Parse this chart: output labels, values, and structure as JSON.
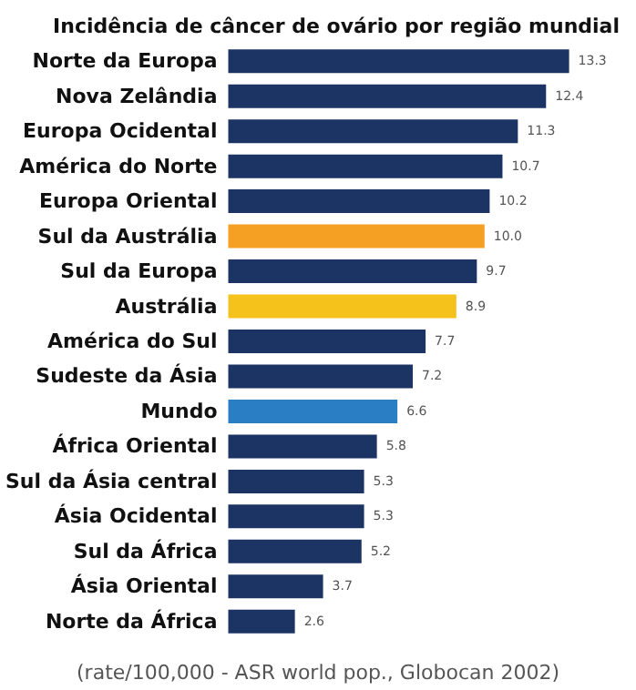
{
  "chart_data": {
    "type": "bar",
    "orientation": "horizontal",
    "title": "Incidência de câncer de ovário por região mundial",
    "categories": [
      "Norte da Europa",
      "Nova Zelândia",
      "Europa Ocidental",
      "América do Norte",
      "Europa Oriental",
      "Sul da Austrália",
      "Sul da Europa",
      "Austrália",
      "América do Sul",
      "Sudeste da Ásia",
      "Mundo",
      "África Oriental",
      "Sul da Ásia central",
      "Ásia Ocidental",
      "Sul da África",
      "Ásia Oriental",
      "Norte da África"
    ],
    "values": [
      13.3,
      12.4,
      11.3,
      10.7,
      10.2,
      10.0,
      9.7,
      8.9,
      7.7,
      7.2,
      6.6,
      5.8,
      5.3,
      5.3,
      5.2,
      3.7,
      2.6
    ],
    "value_labels": [
      "13.3",
      "12.4",
      "11.3",
      "10.7",
      "10.2",
      "10.0",
      "9.7",
      "8.9",
      "7.7",
      "7.2",
      "6.6",
      "5.8",
      "5.3",
      "5.3",
      "5.2",
      "3.7",
      "2.6"
    ],
    "colors": [
      "#1b3464",
      "#1b3464",
      "#1b3464",
      "#1b3464",
      "#1b3464",
      "#f5a023",
      "#1b3464",
      "#f5c21b",
      "#1b3464",
      "#1b3464",
      "#2a7fc4",
      "#1b3464",
      "#1b3464",
      "#1b3464",
      "#1b3464",
      "#1b3464",
      "#1b3464"
    ],
    "tick_labels": "y",
    "annotations": [
      "(rate/100,000 - ASR world pop., Globocan 2002)"
    ]
  }
}
